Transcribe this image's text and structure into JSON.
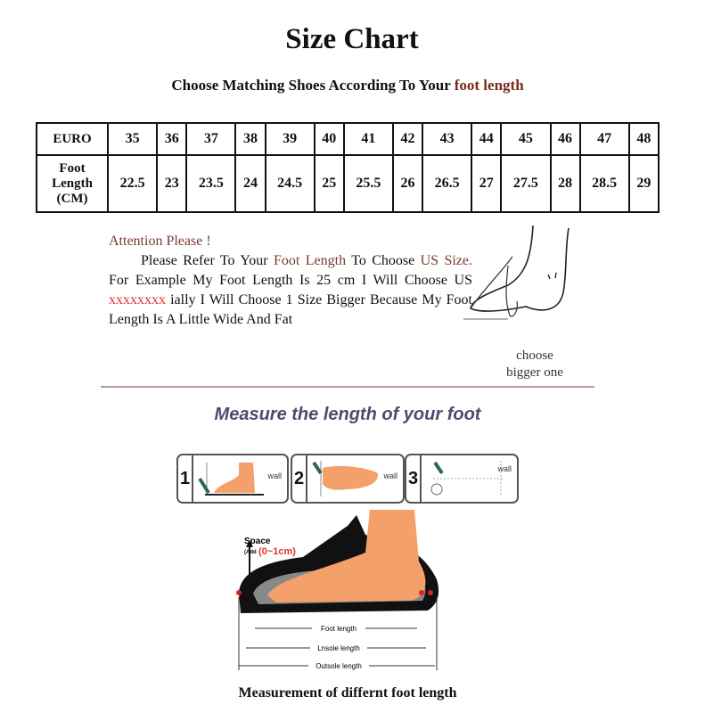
{
  "title": "Size Chart",
  "subtitle": {
    "prefix": "Choose Matching Shoes According To Your",
    "highlight": "foot length"
  },
  "size_table": {
    "row1_header": "EURO",
    "row2_header": [
      "Foot",
      "Length",
      "(CM)"
    ],
    "euro": [
      "35",
      "36",
      "37",
      "38",
      "39",
      "40",
      "41",
      "42",
      "43",
      "44",
      "45",
      "46",
      "47",
      "48"
    ],
    "foot_length_cm": [
      "22.5",
      "23",
      "23.5",
      "24",
      "24.5",
      "25",
      "25.5",
      "26",
      "26.5",
      "27",
      "27.5",
      "28",
      "28.5",
      "29"
    ]
  },
  "attention": {
    "heading": "Attention Please !",
    "p1": "Please Refer To Your",
    "p1_hl": "Foot Length",
    "p2": "To Choose",
    "p3_hl": "US Size.",
    "p4": "For Example My Foot Length Is 25 cm I Will Choose US",
    "p5_x": "xxxxxxxx",
    "p6": "ially I Will Choose 1 Size Bigger Because My Foot Length Is A Little Wide And Fat"
  },
  "choose_note": [
    "choose",
    "bigger one"
  ],
  "measure_heading": "Measure the length of your foot",
  "steps": [
    {
      "number": "1",
      "label": "wall"
    },
    {
      "number": "2",
      "label": "wall"
    },
    {
      "number": "3",
      "label": "wall"
    }
  ],
  "diagram": {
    "space_label": "Space",
    "space_add": "(Add",
    "space_range": "(0~1cm)",
    "foot_length": "Foot length",
    "insole_length": "Lnsole length",
    "outsole_length": "Outsole length"
  },
  "caption": "Measurement of differnt foot length",
  "colors": {
    "accent_text": "#7a2a1a",
    "heading_purple": "#4e4a6e",
    "skin": "#f4a06a",
    "sole": "#111111"
  }
}
